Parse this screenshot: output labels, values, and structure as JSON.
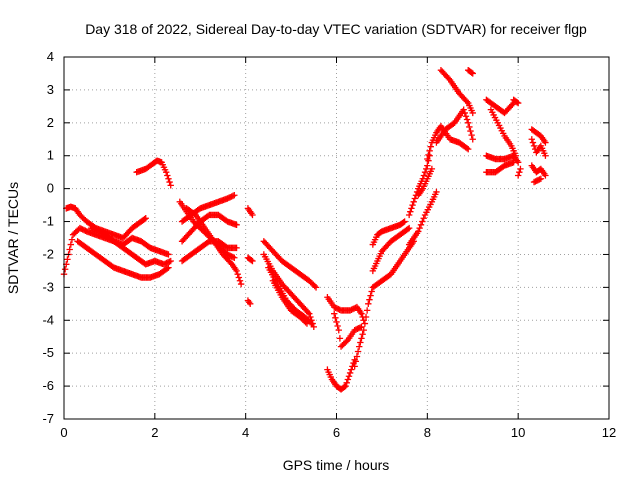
{
  "chart_data": {
    "type": "scatter",
    "title": "Day 318 of 2022, Sidereal Day-to-day VTEC variation (SDTVAR) for receiver flgp",
    "xlabel": "GPS time / hours",
    "ylabel": "SDTVAR / TECUs",
    "xlim": [
      0,
      12
    ],
    "ylim": [
      -7,
      4
    ],
    "xticks": [
      0,
      2,
      4,
      6,
      8,
      10,
      12
    ],
    "yticks": [
      -7,
      -6,
      -5,
      -4,
      -3,
      -2,
      -1,
      0,
      1,
      2,
      3,
      4
    ],
    "grid": true,
    "legend": "none",
    "marker": "plus",
    "color": "#ff0000",
    "segments": [
      [
        [
          0.0,
          -2.6
        ],
        [
          0.1,
          -2.0
        ],
        [
          0.2,
          -1.4
        ],
        [
          0.35,
          -1.2
        ],
        [
          0.5,
          -1.3
        ],
        [
          0.7,
          -1.4
        ],
        [
          0.9,
          -1.5
        ],
        [
          1.1,
          -1.6
        ],
        [
          1.3,
          -1.7
        ],
        [
          1.5,
          -1.5
        ],
        [
          1.7,
          -1.6
        ],
        [
          1.9,
          -1.8
        ],
        [
          2.1,
          -1.9
        ],
        [
          2.3,
          -2.0
        ]
      ],
      [
        [
          0.05,
          -0.6
        ],
        [
          0.15,
          -0.55
        ],
        [
          0.25,
          -0.6
        ],
        [
          0.35,
          -0.8
        ],
        [
          0.5,
          -1.0
        ],
        [
          0.7,
          -1.2
        ],
        [
          0.9,
          -1.3
        ],
        [
          1.1,
          -1.4
        ],
        [
          1.3,
          -1.5
        ],
        [
          1.5,
          -1.2
        ],
        [
          1.7,
          -1.0
        ],
        [
          1.8,
          -0.9
        ]
      ],
      [
        [
          0.3,
          -1.6
        ],
        [
          0.5,
          -1.8
        ],
        [
          0.7,
          -2.0
        ],
        [
          0.9,
          -2.2
        ],
        [
          1.1,
          -2.4
        ],
        [
          1.3,
          -2.5
        ],
        [
          1.5,
          -2.6
        ],
        [
          1.7,
          -2.7
        ],
        [
          1.9,
          -2.7
        ],
        [
          2.1,
          -2.6
        ],
        [
          2.3,
          -2.4
        ]
      ],
      [
        [
          0.6,
          -1.2
        ],
        [
          0.8,
          -1.3
        ],
        [
          1.0,
          -1.5
        ],
        [
          1.2,
          -1.7
        ],
        [
          1.4,
          -1.9
        ],
        [
          1.6,
          -2.1
        ],
        [
          1.8,
          -2.3
        ],
        [
          2.0,
          -2.2
        ],
        [
          2.2,
          -2.3
        ],
        [
          2.35,
          -2.2
        ]
      ],
      [
        [
          1.6,
          0.5
        ],
        [
          1.8,
          0.6
        ],
        [
          1.95,
          0.75
        ],
        [
          2.05,
          0.85
        ],
        [
          2.15,
          0.8
        ],
        [
          2.25,
          0.5
        ],
        [
          2.35,
          0.1
        ]
      ],
      [
        [
          2.6,
          -1.0
        ],
        [
          2.8,
          -0.8
        ],
        [
          3.0,
          -0.6
        ],
        [
          3.2,
          -0.5
        ],
        [
          3.4,
          -0.4
        ],
        [
          3.6,
          -0.3
        ],
        [
          3.75,
          -0.2
        ]
      ],
      [
        [
          2.6,
          -1.6
        ],
        [
          2.8,
          -1.3
        ],
        [
          3.0,
          -1.0
        ],
        [
          3.2,
          -0.8
        ],
        [
          3.4,
          -0.8
        ],
        [
          3.6,
          -1.0
        ],
        [
          3.8,
          -1.1
        ]
      ],
      [
        [
          2.6,
          -2.2
        ],
        [
          2.8,
          -2.0
        ],
        [
          3.0,
          -1.8
        ],
        [
          3.2,
          -1.6
        ],
        [
          3.4,
          -1.6
        ],
        [
          3.6,
          -1.8
        ],
        [
          3.8,
          -1.8
        ]
      ],
      [
        [
          2.7,
          -0.6
        ],
        [
          2.9,
          -0.8
        ],
        [
          3.1,
          -1.2
        ],
        [
          3.3,
          -1.6
        ],
        [
          3.5,
          -2.0
        ],
        [
          3.7,
          -2.3
        ],
        [
          3.8,
          -2.5
        ],
        [
          3.9,
          -2.9
        ]
      ],
      [
        [
          2.55,
          -0.4
        ],
        [
          2.7,
          -0.7
        ],
        [
          2.85,
          -1.0
        ],
        [
          3.0,
          -1.2
        ],
        [
          3.15,
          -1.4
        ],
        [
          3.3,
          -1.6
        ],
        [
          3.45,
          -1.8
        ],
        [
          3.6,
          -2.0
        ],
        [
          3.75,
          -2.1
        ]
      ],
      [
        [
          4.05,
          -0.6
        ],
        [
          4.15,
          -0.8
        ]
      ],
      [
        [
          4.05,
          -2.1
        ],
        [
          4.15,
          -2.2
        ]
      ],
      [
        [
          4.05,
          -3.4
        ],
        [
          4.1,
          -3.5
        ]
      ],
      [
        [
          4.4,
          -1.6
        ],
        [
          4.6,
          -1.9
        ],
        [
          4.8,
          -2.2
        ],
        [
          5.0,
          -2.4
        ],
        [
          5.2,
          -2.6
        ],
        [
          5.4,
          -2.8
        ],
        [
          5.55,
          -3.0
        ]
      ],
      [
        [
          4.4,
          -2.0
        ],
        [
          4.6,
          -2.5
        ],
        [
          4.8,
          -2.9
        ],
        [
          5.0,
          -3.2
        ],
        [
          5.2,
          -3.5
        ],
        [
          5.4,
          -3.8
        ],
        [
          5.5,
          -4.2
        ]
      ],
      [
        [
          4.5,
          -2.4
        ],
        [
          4.7,
          -2.9
        ],
        [
          4.9,
          -3.4
        ],
        [
          5.1,
          -3.7
        ],
        [
          5.3,
          -3.9
        ],
        [
          5.45,
          -4.1
        ]
      ],
      [
        [
          4.6,
          -2.8
        ],
        [
          4.8,
          -3.3
        ],
        [
          5.0,
          -3.7
        ],
        [
          5.2,
          -3.9
        ],
        [
          5.35,
          -4.1
        ]
      ],
      [
        [
          5.8,
          -3.3
        ],
        [
          5.95,
          -3.6
        ],
        [
          6.1,
          -3.7
        ],
        [
          6.3,
          -3.7
        ],
        [
          6.45,
          -3.6
        ],
        [
          6.55,
          -3.8
        ],
        [
          6.6,
          -4.0
        ]
      ],
      [
        [
          5.95,
          -3.8
        ],
        [
          6.05,
          -4.3
        ],
        [
          6.1,
          -4.8
        ],
        [
          6.25,
          -4.6
        ],
        [
          6.4,
          -4.3
        ],
        [
          6.55,
          -4.2
        ]
      ],
      [
        [
          5.8,
          -5.5
        ],
        [
          5.9,
          -5.8
        ],
        [
          6.0,
          -6.0
        ],
        [
          6.1,
          -6.1
        ],
        [
          6.2,
          -6.0
        ],
        [
          6.3,
          -5.6
        ],
        [
          6.4,
          -5.2
        ]
      ],
      [
        [
          6.4,
          -5.4
        ],
        [
          6.5,
          -4.8
        ],
        [
          6.6,
          -4.3
        ],
        [
          6.7,
          -3.5
        ],
        [
          6.8,
          -3.0
        ],
        [
          7.0,
          -2.8
        ],
        [
          7.2,
          -2.6
        ],
        [
          7.4,
          -2.2
        ],
        [
          7.6,
          -1.8
        ],
        [
          7.7,
          -1.6
        ]
      ],
      [
        [
          6.8,
          -2.5
        ],
        [
          6.9,
          -2.2
        ],
        [
          7.0,
          -1.9
        ],
        [
          7.2,
          -1.6
        ],
        [
          7.4,
          -1.4
        ],
        [
          7.6,
          -1.2
        ]
      ],
      [
        [
          6.8,
          -1.7
        ],
        [
          6.9,
          -1.4
        ],
        [
          7.0,
          -1.3
        ],
        [
          7.2,
          -1.2
        ],
        [
          7.4,
          -1.1
        ],
        [
          7.5,
          -1.0
        ]
      ],
      [
        [
          7.6,
          -1.7
        ],
        [
          7.8,
          -1.3
        ],
        [
          7.95,
          -0.8
        ],
        [
          8.1,
          -0.4
        ],
        [
          8.2,
          -0.1
        ]
      ],
      [
        [
          7.6,
          -0.8
        ],
        [
          7.7,
          -0.4
        ],
        [
          7.8,
          0.0
        ],
        [
          7.9,
          0.3
        ],
        [
          8.0,
          0.7
        ],
        [
          8.05,
          1.0
        ]
      ],
      [
        [
          7.8,
          -0.2
        ],
        [
          7.9,
          0.0
        ],
        [
          8.0,
          0.3
        ],
        [
          8.1,
          0.6
        ]
      ],
      [
        [
          8.0,
          0.9
        ],
        [
          8.1,
          1.4
        ],
        [
          8.2,
          1.7
        ],
        [
          8.3,
          1.9
        ],
        [
          8.5,
          1.5
        ],
        [
          8.7,
          1.4
        ],
        [
          8.9,
          1.2
        ]
      ],
      [
        [
          8.2,
          1.4
        ],
        [
          8.4,
          1.8
        ],
        [
          8.6,
          2.0
        ],
        [
          8.8,
          2.4
        ],
        [
          8.9,
          2.0
        ],
        [
          9.0,
          1.5
        ]
      ],
      [
        [
          8.3,
          3.6
        ],
        [
          8.5,
          3.3
        ],
        [
          8.7,
          2.9
        ],
        [
          8.9,
          2.6
        ],
        [
          9.0,
          2.3
        ]
      ],
      [
        [
          8.9,
          3.6
        ],
        [
          9.0,
          3.5
        ]
      ],
      [
        [
          9.3,
          2.7
        ],
        [
          9.5,
          2.5
        ],
        [
          9.7,
          2.3
        ],
        [
          9.9,
          2.6
        ]
      ],
      [
        [
          9.4,
          2.4
        ],
        [
          9.55,
          2.0
        ],
        [
          9.7,
          1.6
        ],
        [
          9.85,
          1.3
        ],
        [
          9.95,
          1.0
        ]
      ],
      [
        [
          9.3,
          1.0
        ],
        [
          9.5,
          0.9
        ],
        [
          9.7,
          0.9
        ],
        [
          9.9,
          1.0
        ],
        [
          10.0,
          0.8
        ]
      ],
      [
        [
          9.3,
          0.5
        ],
        [
          9.5,
          0.5
        ],
        [
          9.7,
          0.7
        ],
        [
          9.9,
          0.8
        ]
      ],
      [
        [
          9.9,
          2.7
        ],
        [
          10.0,
          2.6
        ]
      ],
      [
        [
          10.0,
          0.4
        ],
        [
          10.05,
          0.6
        ]
      ],
      [
        [
          10.3,
          1.5
        ],
        [
          10.4,
          1.1
        ],
        [
          10.5,
          1.3
        ],
        [
          10.6,
          1.0
        ]
      ],
      [
        [
          10.3,
          0.7
        ],
        [
          10.4,
          0.5
        ],
        [
          10.5,
          0.6
        ],
        [
          10.6,
          0.4
        ]
      ],
      [
        [
          10.3,
          1.8
        ],
        [
          10.5,
          1.6
        ],
        [
          10.6,
          1.4
        ]
      ],
      [
        [
          10.35,
          0.2
        ],
        [
          10.5,
          0.3
        ]
      ]
    ]
  }
}
